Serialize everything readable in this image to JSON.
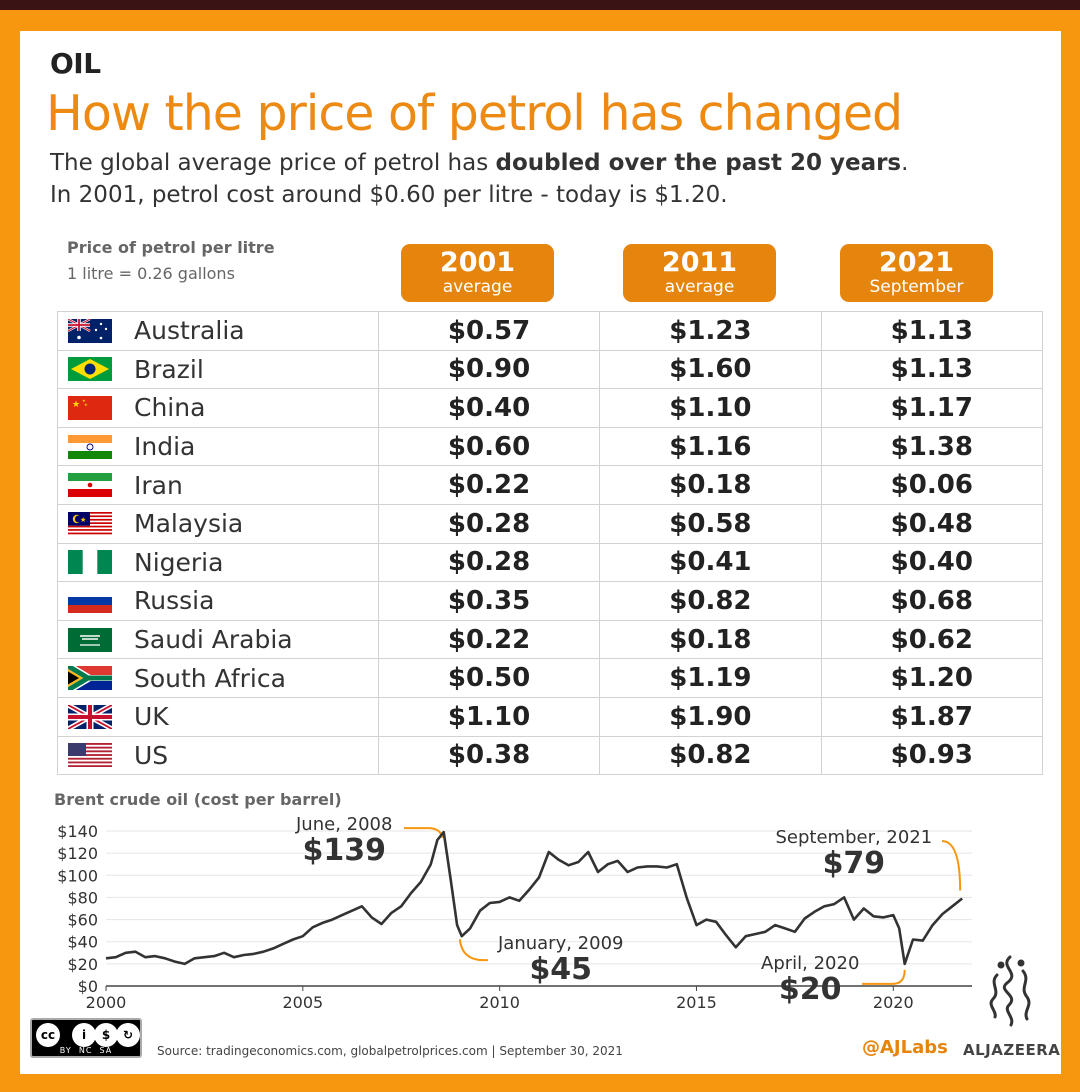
{
  "header": {
    "kicker": "OIL",
    "title": "How the price of petrol has changed",
    "subtitle_line1_pre": "The global average price of petrol has ",
    "subtitle_line1_bold": "doubled over the past 20 years",
    "subtitle_line1_post": ".",
    "subtitle_line2": "In 2001, petrol cost around $0.60 per litre - today is $1.20."
  },
  "table": {
    "label": "Price of petrol per litre",
    "note": "1 litre = 0.26 gallons",
    "columns": [
      {
        "year": "2001",
        "sub": "average"
      },
      {
        "year": "2011",
        "sub": "average"
      },
      {
        "year": "2021",
        "sub": "September"
      }
    ],
    "rows": [
      {
        "country": "Australia",
        "flag": "australia-flag-icon",
        "v2001": "$0.57",
        "v2011": "$1.23",
        "v2021": "$1.13"
      },
      {
        "country": "Brazil",
        "flag": "brazil-flag-icon",
        "v2001": "$0.90",
        "v2011": "$1.60",
        "v2021": "$1.13"
      },
      {
        "country": "China",
        "flag": "china-flag-icon",
        "v2001": "$0.40",
        "v2011": "$1.10",
        "v2021": "$1.17"
      },
      {
        "country": "India",
        "flag": "india-flag-icon",
        "v2001": "$0.60",
        "v2011": "$1.16",
        "v2021": "$1.38"
      },
      {
        "country": "Iran",
        "flag": "iran-flag-icon",
        "v2001": "$0.22",
        "v2011": "$0.18",
        "v2021": "$0.06"
      },
      {
        "country": "Malaysia",
        "flag": "malaysia-flag-icon",
        "v2001": "$0.28",
        "v2011": "$0.58",
        "v2021": "$0.48"
      },
      {
        "country": "Nigeria",
        "flag": "nigeria-flag-icon",
        "v2001": "$0.28",
        "v2011": "$0.41",
        "v2021": "$0.40"
      },
      {
        "country": "Russia",
        "flag": "russia-flag-icon",
        "v2001": "$0.35",
        "v2011": "$0.82",
        "v2021": "$0.68"
      },
      {
        "country": "Saudi Arabia",
        "flag": "saudi-arabia-flag-icon",
        "v2001": "$0.22",
        "v2011": "$0.18",
        "v2021": "$0.62"
      },
      {
        "country": "South Africa",
        "flag": "south-africa-flag-icon",
        "v2001": "$0.50",
        "v2011": "$1.19",
        "v2021": "$1.20"
      },
      {
        "country": "UK",
        "flag": "uk-flag-icon",
        "v2001": "$1.10",
        "v2011": "$1.90",
        "v2021": "$1.87"
      },
      {
        "country": "US",
        "flag": "us-flag-icon",
        "v2001": "$0.38",
        "v2011": "$0.82",
        "v2021": "$0.93"
      }
    ]
  },
  "chart_data": {
    "type": "line",
    "title": "Brent crude oil (cost per barrel)",
    "xlabel": "",
    "ylabel": "",
    "xlim": [
      2000,
      2022
    ],
    "ylim": [
      0,
      140
    ],
    "x_ticks": [
      "2000",
      "2005",
      "2010",
      "2015",
      "2020"
    ],
    "y_ticks": [
      "$0",
      "$20",
      "$40",
      "$60",
      "$80",
      "$100",
      "$120",
      "$140"
    ],
    "grid": true,
    "series": [
      {
        "x": [
          2000.0,
          2000.25,
          2000.5,
          2000.75,
          2001.0,
          2001.25,
          2001.5,
          2001.75,
          2002.0,
          2002.25,
          2002.5,
          2002.75,
          2003.0,
          2003.25,
          2003.5,
          2003.75,
          2004.0,
          2004.25,
          2004.5,
          2004.75,
          2005.0,
          2005.25,
          2005.5,
          2005.75,
          2006.0,
          2006.25,
          2006.5,
          2006.75,
          2007.0,
          2007.25,
          2007.5,
          2007.75,
          2008.0,
          2008.25,
          2008.42,
          2008.58,
          2008.75,
          2008.92,
          2009.04,
          2009.25,
          2009.5,
          2009.75,
          2010.0,
          2010.25,
          2010.5,
          2010.75,
          2011.0,
          2011.25,
          2011.5,
          2011.75,
          2012.0,
          2012.25,
          2012.5,
          2012.75,
          2013.0,
          2013.25,
          2013.5,
          2013.75,
          2014.0,
          2014.25,
          2014.5,
          2014.75,
          2015.0,
          2015.25,
          2015.5,
          2015.75,
          2016.0,
          2016.25,
          2016.5,
          2016.75,
          2017.0,
          2017.25,
          2017.5,
          2017.75,
          2018.0,
          2018.25,
          2018.5,
          2018.75,
          2019.0,
          2019.25,
          2019.5,
          2019.75,
          2020.0,
          2020.15,
          2020.29,
          2020.5,
          2020.75,
          2021.0,
          2021.25,
          2021.5,
          2021.75
        ],
        "y": [
          25,
          26,
          30,
          31,
          26,
          27,
          25,
          22,
          20,
          25,
          26,
          27,
          30,
          26,
          28,
          29,
          31,
          34,
          38,
          42,
          45,
          53,
          57,
          60,
          64,
          68,
          72,
          62,
          56,
          66,
          72,
          84,
          94,
          110,
          132,
          139,
          98,
          55,
          45,
          52,
          68,
          75,
          76,
          80,
          77,
          87,
          98,
          121,
          114,
          109,
          112,
          121,
          103,
          110,
          113,
          103,
          107,
          108,
          108,
          107,
          110,
          80,
          55,
          60,
          58,
          46,
          35,
          45,
          47,
          49,
          55,
          52,
          49,
          61,
          67,
          72,
          74,
          80,
          60,
          70,
          63,
          62,
          64,
          52,
          20,
          42,
          41,
          55,
          65,
          72,
          79
        ]
      }
    ],
    "annotations": [
      {
        "label": "June, 2008",
        "value": "$139"
      },
      {
        "label": "January, 2009",
        "value": "$45"
      },
      {
        "label": "April, 2020",
        "value": "$20"
      },
      {
        "label": "September, 2021",
        "value": "$79"
      }
    ],
    "colors": {
      "line": "#333333",
      "callout": "#f7960f",
      "grid": "#e5e5e5"
    }
  },
  "footer": {
    "license": {
      "by": "BY",
      "nc": "NC",
      "sa": "SA"
    },
    "source": "Source: tradingeconomics.com,  globalpetrolprices.com |  September 30, 2021",
    "handle": "@AJLabs",
    "brand": "ALJAZEERA"
  },
  "colors": {
    "frame": "#f7960f",
    "accent": "#e5850d",
    "title": "#ec8a13",
    "topbar": "#3a1314"
  }
}
